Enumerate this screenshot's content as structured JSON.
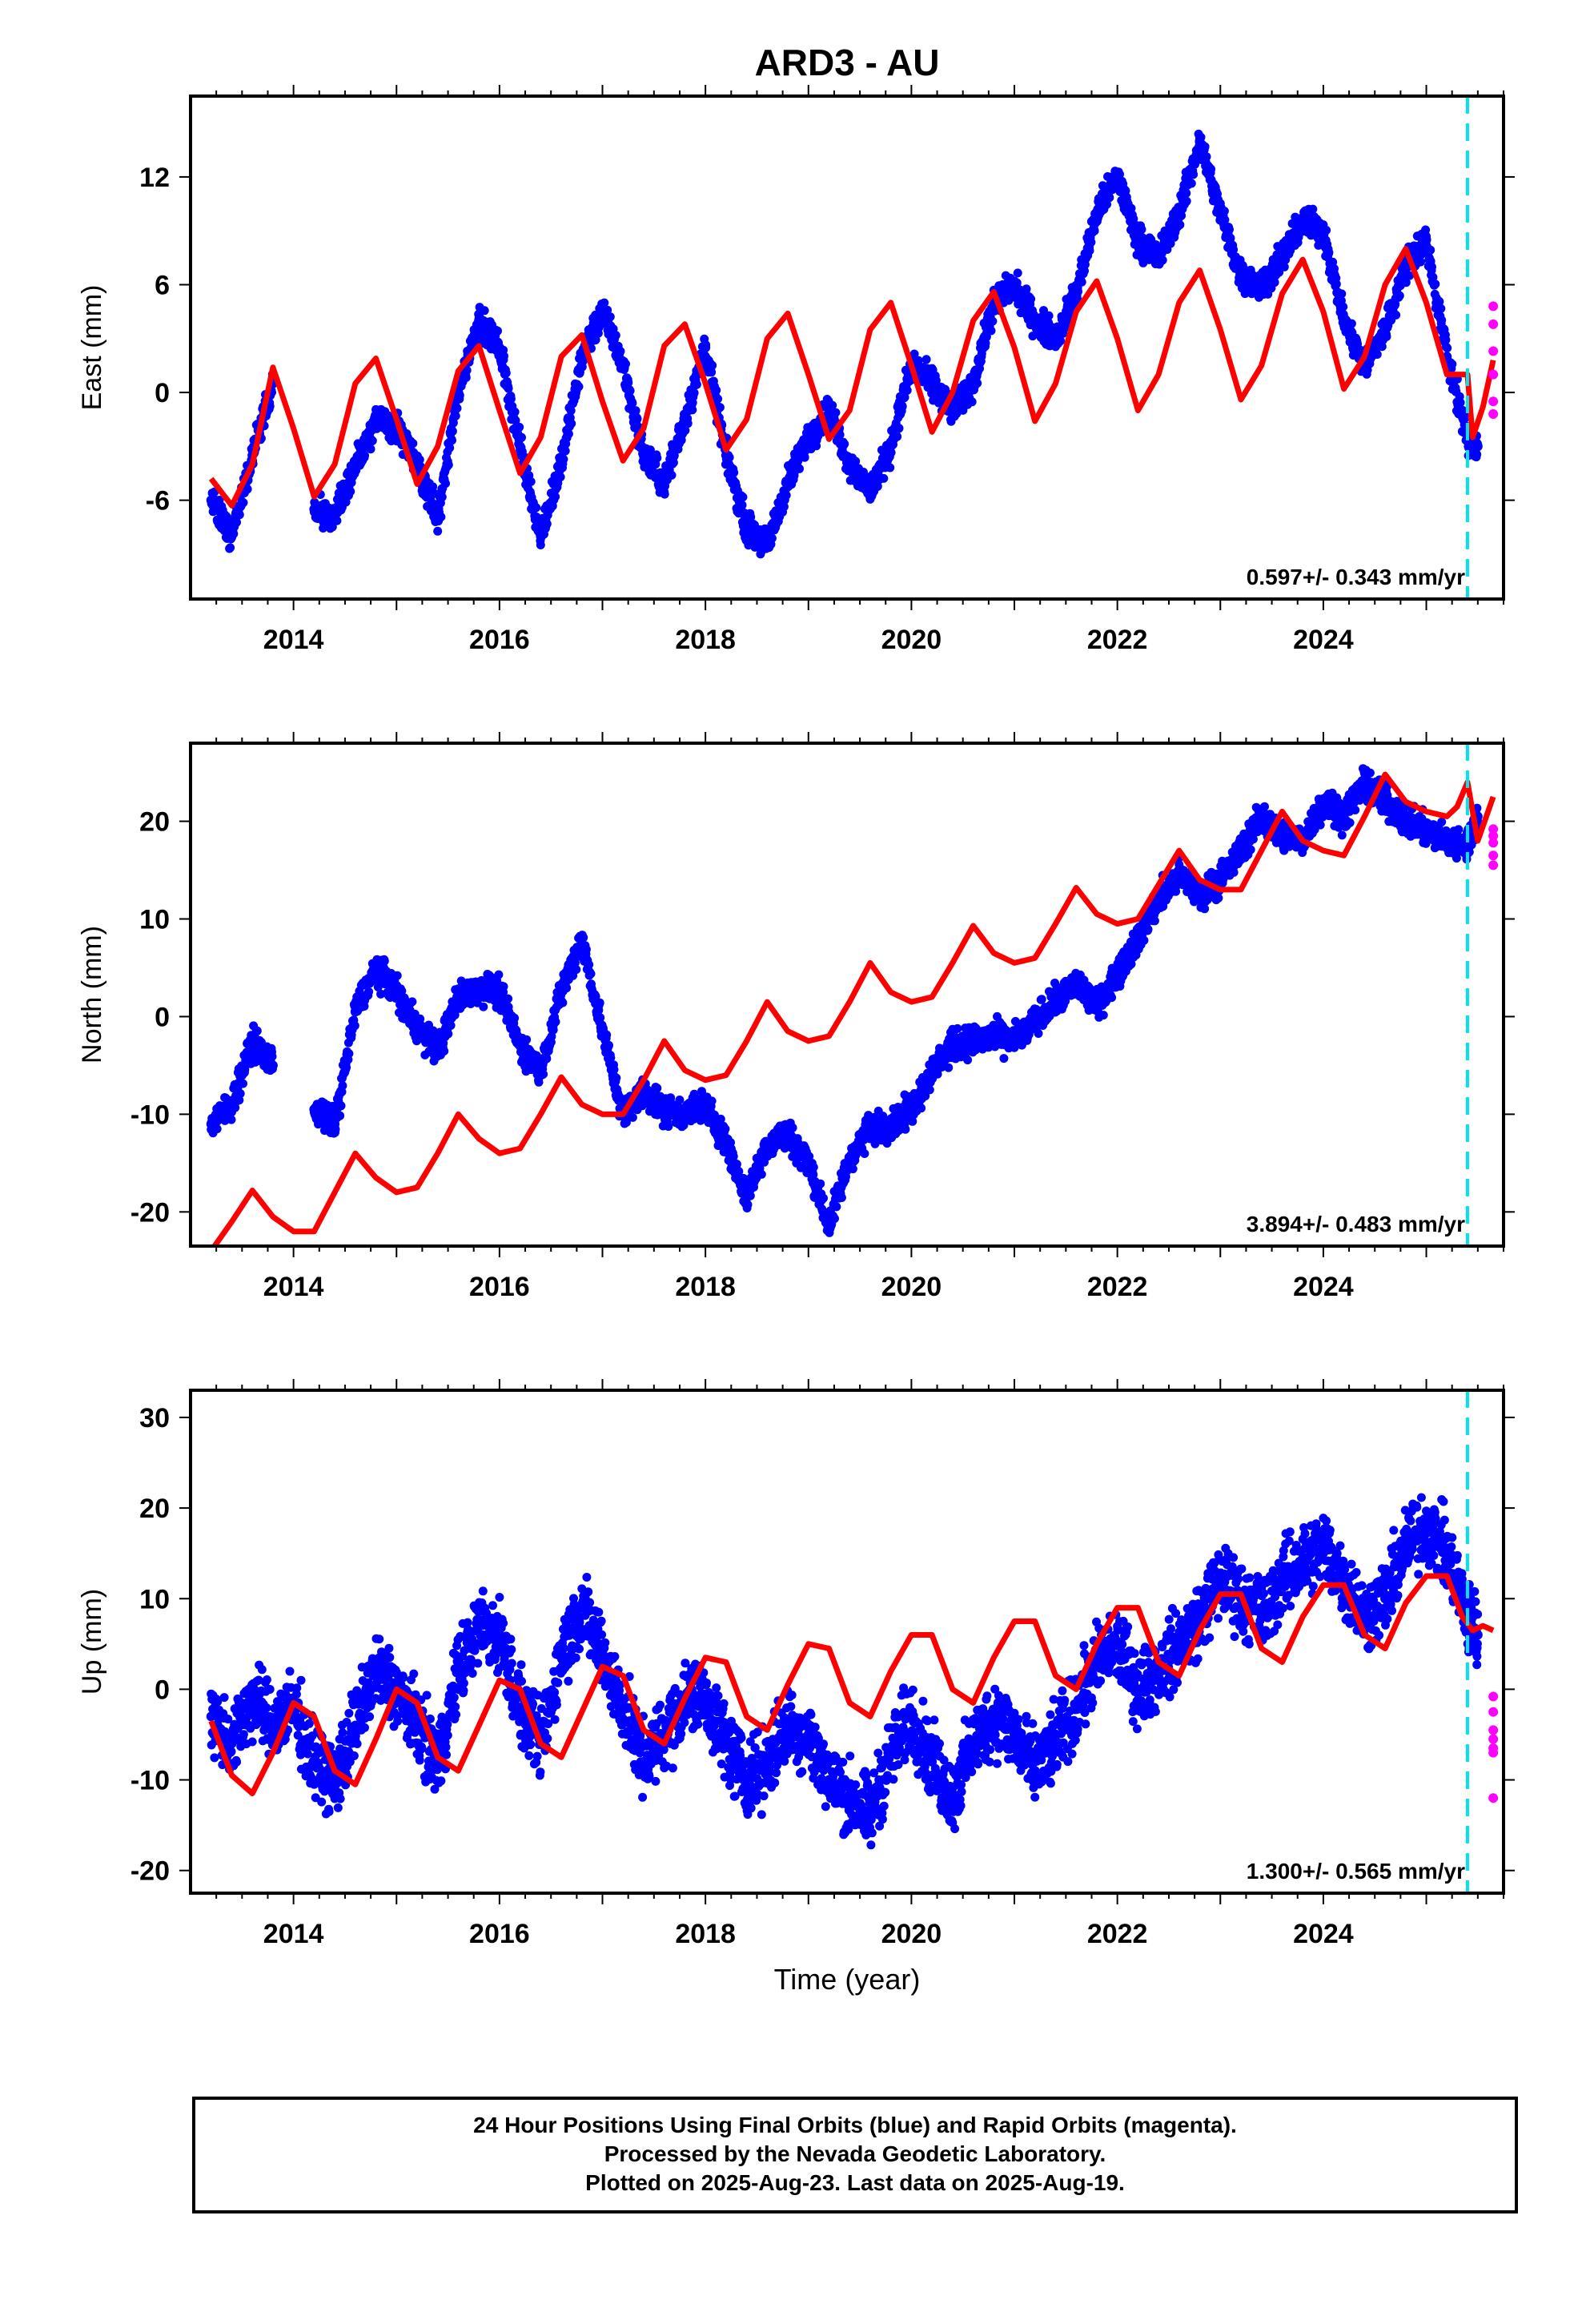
{
  "figure": {
    "title": "ARD3 - AU"
  },
  "legend_text": {
    "line1": "24 Hour Positions Using Final Orbits (blue) and Rapid Orbits (magenta).",
    "line2": "Processed by the Nevada Geodetic Laboratory.",
    "line3": "Plotted on 2025-Aug-23. Last data on 2025-Aug-19."
  },
  "colors": {
    "final": "#0000ff",
    "rapid": "#ff00ff",
    "model": "#ff0000",
    "break": "#00e5ee"
  },
  "chart_data": [
    {
      "type": "scatter",
      "title": "ARD3 - AU",
      "ylabel": "East (mm)",
      "xlabel": "",
      "xlim": [
        2013.0,
        2025.75
      ],
      "ylim": [
        -11.5,
        16.5
      ],
      "xticks": [
        "2014",
        "2016",
        "2018",
        "2020",
        "2022",
        "2024"
      ],
      "yticks": [
        "-6",
        "0",
        "6",
        "12"
      ],
      "rate_label": "0.597+/- 0.343 mm/yr",
      "break_year": 2025.4,
      "grid": false,
      "series": [
        {
          "x": [
            2013.2,
            2013.4,
            2013.6,
            2013.8,
            2014.0,
            2014.2,
            2014.4,
            2014.6,
            2014.8,
            2015.0,
            2015.2,
            2015.4,
            2015.6,
            2015.8,
            2016.0,
            2016.2,
            2016.4,
            2016.6,
            2016.8,
            2017.0,
            2017.2,
            2017.4,
            2017.6,
            2017.8,
            2018.0,
            2018.2,
            2018.4,
            2018.6,
            2018.8,
            2019.0,
            2019.2,
            2019.4,
            2019.6,
            2019.8,
            2020.0,
            2020.2,
            2020.4,
            2020.6,
            2020.8,
            2021.0,
            2021.2,
            2021.4,
            2021.6,
            2021.8,
            2022.0,
            2022.2,
            2022.4,
            2022.6,
            2022.8,
            2023.0,
            2023.2,
            2023.4,
            2023.6,
            2023.8,
            2024.0,
            2024.2,
            2024.4,
            2024.6,
            2024.8,
            2025.0,
            2025.2,
            2025.4,
            2025.5
          ],
          "y": [
            -6.0,
            -8.0,
            -3.5,
            0.5,
            null,
            -6.5,
            -7.0,
            -4.0,
            -1.5,
            -2.0,
            -4.0,
            -7.0,
            0.0,
            4.0,
            2.5,
            -3.0,
            -8.0,
            -4.0,
            2.0,
            4.5,
            1.5,
            -3.5,
            -5.0,
            -1.5,
            2.5,
            -3.5,
            -7.5,
            -8.5,
            -5.0,
            -2.5,
            -1.0,
            -4.0,
            -5.5,
            -3.0,
            1.5,
            0.5,
            -1.0,
            0.5,
            5.0,
            6.0,
            4.0,
            3.0,
            5.5,
            10.0,
            12.0,
            8.5,
            7.5,
            10.0,
            14.0,
            10.0,
            6.5,
            6.0,
            7.5,
            9.5,
            9.0,
            4.0,
            1.5,
            3.5,
            7.0,
            8.5,
            2.0,
            -2.5,
            -3.0
          ]
        },
        {
          "x": [
            2025.65,
            2025.65,
            2025.65,
            2025.65,
            2025.65,
            2025.65
          ],
          "y": [
            4.8,
            3.8,
            2.3,
            1.0,
            -0.5,
            -1.2
          ]
        },
        {
          "x": [
            2013.2,
            2013.4,
            2013.6,
            2013.8,
            2014.0,
            2014.2,
            2014.4,
            2014.6,
            2014.8,
            2015.0,
            2015.2,
            2015.4,
            2015.6,
            2015.8,
            2016.0,
            2016.2,
            2016.4,
            2016.6,
            2016.8,
            2017.0,
            2017.2,
            2017.4,
            2017.6,
            2017.8,
            2018.0,
            2018.2,
            2018.4,
            2018.6,
            2018.8,
            2019.0,
            2019.2,
            2019.4,
            2019.6,
            2019.8,
            2020.0,
            2020.2,
            2020.4,
            2020.6,
            2020.8,
            2021.0,
            2021.2,
            2021.4,
            2021.6,
            2021.8,
            2022.0,
            2022.2,
            2022.4,
            2022.6,
            2022.8,
            2023.0,
            2023.2,
            2023.4,
            2023.6,
            2023.8,
            2024.0,
            2024.2,
            2024.4,
            2024.6,
            2024.8,
            2025.0,
            2025.2,
            2025.4,
            2025.45,
            2025.55,
            2025.65
          ],
          "y": [
            -4.8,
            -6.3,
            -4.0,
            1.4,
            -2.0,
            -5.8,
            -4.0,
            0.5,
            1.9,
            -1.5,
            -5.1,
            -3.0,
            1.2,
            2.6,
            -1.0,
            -4.5,
            -2.5,
            2.0,
            3.2,
            -0.5,
            -3.8,
            -2.0,
            2.6,
            3.8,
            0.5,
            -3.2,
            -1.5,
            3.0,
            4.4,
            1.0,
            -2.6,
            -1.0,
            3.5,
            5.0,
            1.5,
            -2.2,
            0.0,
            4.0,
            5.6,
            2.5,
            -1.6,
            0.5,
            4.5,
            6.2,
            3.0,
            -1.0,
            1.0,
            5.0,
            6.8,
            3.5,
            -0.4,
            1.5,
            5.5,
            7.4,
            4.5,
            0.2,
            2.0,
            6.0,
            8.0,
            5.0,
            1.0,
            1.0,
            -2.5,
            -0.8,
            1.8
          ]
        }
      ]
    },
    {
      "type": "scatter",
      "title": "",
      "ylabel": "North (mm)",
      "xlabel": "",
      "xlim": [
        2013.0,
        2025.75
      ],
      "ylim": [
        -23.5,
        28.0
      ],
      "xticks": [
        "2014",
        "2016",
        "2018",
        "2020",
        "2022",
        "2024"
      ],
      "yticks": [
        "-20",
        "-10",
        "0",
        "10",
        "20"
      ],
      "rate_label": "3.894+/- 0.483 mm/yr",
      "break_year": 2025.4,
      "grid": false,
      "series": [
        {
          "x": [
            2013.2,
            2013.4,
            2013.6,
            2013.8,
            2014.0,
            2014.2,
            2014.4,
            2014.6,
            2014.8,
            2015.0,
            2015.2,
            2015.4,
            2015.6,
            2015.8,
            2016.0,
            2016.2,
            2016.4,
            2016.6,
            2016.8,
            2017.0,
            2017.2,
            2017.4,
            2017.6,
            2017.8,
            2018.0,
            2018.2,
            2018.4,
            2018.6,
            2018.8,
            2019.0,
            2019.2,
            2019.4,
            2019.6,
            2019.8,
            2020.0,
            2020.2,
            2020.4,
            2020.6,
            2020.8,
            2021.0,
            2021.2,
            2021.4,
            2021.6,
            2021.8,
            2022.0,
            2022.2,
            2022.4,
            2022.6,
            2022.8,
            2023.0,
            2023.2,
            2023.4,
            2023.6,
            2023.8,
            2024.0,
            2024.2,
            2024.4,
            2024.6,
            2024.8,
            2025.0,
            2025.2,
            2025.4,
            2025.5
          ],
          "y": [
            -11.0,
            -9.0,
            -2.5,
            -5.0,
            null,
            -9.5,
            -11.0,
            0.5,
            5.0,
            2.5,
            -1.0,
            -3.5,
            2.0,
            3.0,
            2.5,
            -3.0,
            -5.5,
            2.5,
            8.0,
            -1.5,
            -10.0,
            -7.5,
            -9.5,
            -10.0,
            -9.0,
            -13.0,
            -18.5,
            -13.0,
            -12.0,
            -15.0,
            -21.5,
            -14.5,
            -11.5,
            -11.0,
            -9.5,
            -5.5,
            -3.0,
            -2.5,
            -2.0,
            -2.5,
            -0.5,
            1.5,
            3.5,
            1.0,
            4.5,
            8.0,
            12.0,
            14.5,
            12.5,
            14.0,
            17.0,
            20.5,
            18.5,
            18.0,
            22.0,
            20.5,
            24.0,
            22.0,
            20.0,
            19.0,
            18.0,
            17.5,
            20.5
          ]
        },
        {
          "x": [
            2025.65,
            2025.65,
            2025.65,
            2025.65,
            2025.65
          ],
          "y": [
            19.2,
            18.5,
            17.8,
            16.5,
            15.5
          ]
        },
        {
          "x": [
            2013.2,
            2013.4,
            2013.6,
            2013.8,
            2014.0,
            2014.2,
            2014.4,
            2014.6,
            2014.8,
            2015.0,
            2015.2,
            2015.4,
            2015.6,
            2015.8,
            2016.0,
            2016.2,
            2016.4,
            2016.6,
            2016.8,
            2017.0,
            2017.2,
            2017.4,
            2017.6,
            2017.8,
            2018.0,
            2018.2,
            2018.4,
            2018.6,
            2018.8,
            2019.0,
            2019.2,
            2019.4,
            2019.6,
            2019.8,
            2020.0,
            2020.2,
            2020.4,
            2020.6,
            2020.8,
            2021.0,
            2021.2,
            2021.4,
            2021.6,
            2021.8,
            2022.0,
            2022.2,
            2022.4,
            2022.6,
            2022.8,
            2023.0,
            2023.2,
            2023.4,
            2023.6,
            2023.8,
            2024.0,
            2024.2,
            2024.4,
            2024.6,
            2024.8,
            2025.0,
            2025.2,
            2025.3,
            2025.4,
            2025.5,
            2025.65
          ],
          "y": [
            -24.0,
            -21.0,
            -17.8,
            -20.5,
            -22.0,
            -22.0,
            -18.0,
            -14.0,
            -16.5,
            -18.0,
            -17.5,
            -14.0,
            -10.0,
            -12.5,
            -14.0,
            -13.5,
            -10.0,
            -6.2,
            -9.0,
            -10.0,
            -10.0,
            -6.5,
            -2.5,
            -5.5,
            -6.5,
            -6.0,
            -2.5,
            1.5,
            -1.5,
            -2.5,
            -2.0,
            1.5,
            5.5,
            2.5,
            1.5,
            2.0,
            5.5,
            9.3,
            6.5,
            5.5,
            6.0,
            9.5,
            13.2,
            10.5,
            9.5,
            10.0,
            13.5,
            17.0,
            14.0,
            13.0,
            13.0,
            17.0,
            21.0,
            18.0,
            17.0,
            16.5,
            20.5,
            24.8,
            22.0,
            21.0,
            20.5,
            21.5,
            24.0,
            18.0,
            22.5
          ]
        }
      ]
    },
    {
      "type": "scatter",
      "title": "",
      "ylabel": "Up (mm)",
      "xlabel": "Time (year)",
      "xlim": [
        2013.0,
        2025.75
      ],
      "ylim": [
        -22.5,
        33.0
      ],
      "xticks": [
        "2014",
        "2016",
        "2018",
        "2020",
        "2022",
        "2024"
      ],
      "yticks": [
        "-20",
        "-10",
        "0",
        "10",
        "20",
        "30"
      ],
      "rate_label": "1.300+/- 0.565 mm/yr",
      "break_year": 2025.4,
      "grid": false,
      "series": [
        {
          "x": [
            2013.2,
            2013.4,
            2013.6,
            2013.8,
            2014.0,
            2014.2,
            2014.4,
            2014.6,
            2014.8,
            2015.0,
            2015.2,
            2015.4,
            2015.6,
            2015.8,
            2016.0,
            2016.2,
            2016.4,
            2016.6,
            2016.8,
            2017.0,
            2017.2,
            2017.4,
            2017.6,
            2017.8,
            2018.0,
            2018.2,
            2018.4,
            2018.6,
            2018.8,
            2019.0,
            2019.2,
            2019.4,
            2019.6,
            2019.8,
            2020.0,
            2020.2,
            2020.4,
            2020.6,
            2020.8,
            2021.0,
            2021.2,
            2021.4,
            2021.6,
            2021.8,
            2022.0,
            2022.2,
            2022.4,
            2022.6,
            2022.8,
            2023.0,
            2023.2,
            2023.4,
            2023.6,
            2023.8,
            2024.0,
            2024.2,
            2024.4,
            2024.6,
            2024.8,
            2025.0,
            2025.2,
            2025.4,
            2025.5
          ],
          "y": [
            -3.0,
            -6.0,
            -1.0,
            -4.0,
            -2.0,
            -8.0,
            -10.0,
            -4.0,
            2.0,
            0.0,
            -4.0,
            -8.0,
            2.0,
            7.0,
            6.0,
            -2.0,
            -6.0,
            4.0,
            9.0,
            4.0,
            -2.0,
            -8.0,
            -5.0,
            -1.0,
            -1.0,
            -6.0,
            -10.0,
            -8.0,
            -4.0,
            -5.0,
            -10.0,
            -12.0,
            -14.0,
            -7.0,
            -3.0,
            -8.0,
            -12.0,
            -6.0,
            -3.0,
            -5.0,
            -9.0,
            -6.0,
            -2.0,
            3.0,
            5.0,
            0.0,
            2.0,
            5.0,
            8.0,
            12.0,
            10.0,
            8.0,
            12.0,
            14.0,
            16.0,
            12.0,
            8.0,
            10.0,
            16.0,
            18.0,
            15.0,
            8.0,
            6.0
          ]
        },
        {
          "x": [
            2025.65,
            2025.65,
            2025.65,
            2025.65,
            2025.65,
            2025.65,
            2025.65
          ],
          "y": [
            -0.8,
            -2.5,
            -4.5,
            -5.5,
            -6.5,
            -7.0,
            -12.0
          ]
        },
        {
          "x": [
            2013.2,
            2013.4,
            2013.6,
            2013.8,
            2014.0,
            2014.2,
            2014.4,
            2014.6,
            2014.8,
            2015.0,
            2015.2,
            2015.4,
            2015.6,
            2015.8,
            2016.0,
            2016.2,
            2016.4,
            2016.6,
            2016.8,
            2017.0,
            2017.2,
            2017.4,
            2017.6,
            2017.8,
            2018.0,
            2018.2,
            2018.4,
            2018.6,
            2018.8,
            2019.0,
            2019.2,
            2019.4,
            2019.6,
            2019.8,
            2020.0,
            2020.2,
            2020.4,
            2020.6,
            2020.8,
            2021.0,
            2021.2,
            2021.4,
            2021.6,
            2021.8,
            2022.0,
            2022.2,
            2022.4,
            2022.6,
            2022.8,
            2023.0,
            2023.2,
            2023.4,
            2023.6,
            2023.8,
            2024.0,
            2024.2,
            2024.4,
            2024.6,
            2024.8,
            2025.0,
            2025.2,
            2025.35,
            2025.45,
            2025.55,
            2025.65
          ],
          "y": [
            -3.5,
            -9.5,
            -11.5,
            -7.0,
            -1.5,
            -3.0,
            -9.0,
            -10.5,
            -5.5,
            0.0,
            -1.5,
            -7.5,
            -9.0,
            -4.0,
            1.0,
            0.0,
            -6.0,
            -7.5,
            -2.5,
            2.5,
            1.5,
            -4.5,
            -6.0,
            -1.0,
            3.5,
            3.0,
            -3.0,
            -4.5,
            0.5,
            5.0,
            4.5,
            -1.5,
            -3.0,
            2.0,
            6.0,
            6.0,
            0.0,
            -1.5,
            3.5,
            7.5,
            7.5,
            1.5,
            0.0,
            5.0,
            9.0,
            9.0,
            3.0,
            1.5,
            6.5,
            10.5,
            10.5,
            4.5,
            3.0,
            8.0,
            11.5,
            11.5,
            6.0,
            4.5,
            9.5,
            12.5,
            12.5,
            8.0,
            6.5,
            7.0,
            6.5
          ]
        }
      ]
    }
  ]
}
